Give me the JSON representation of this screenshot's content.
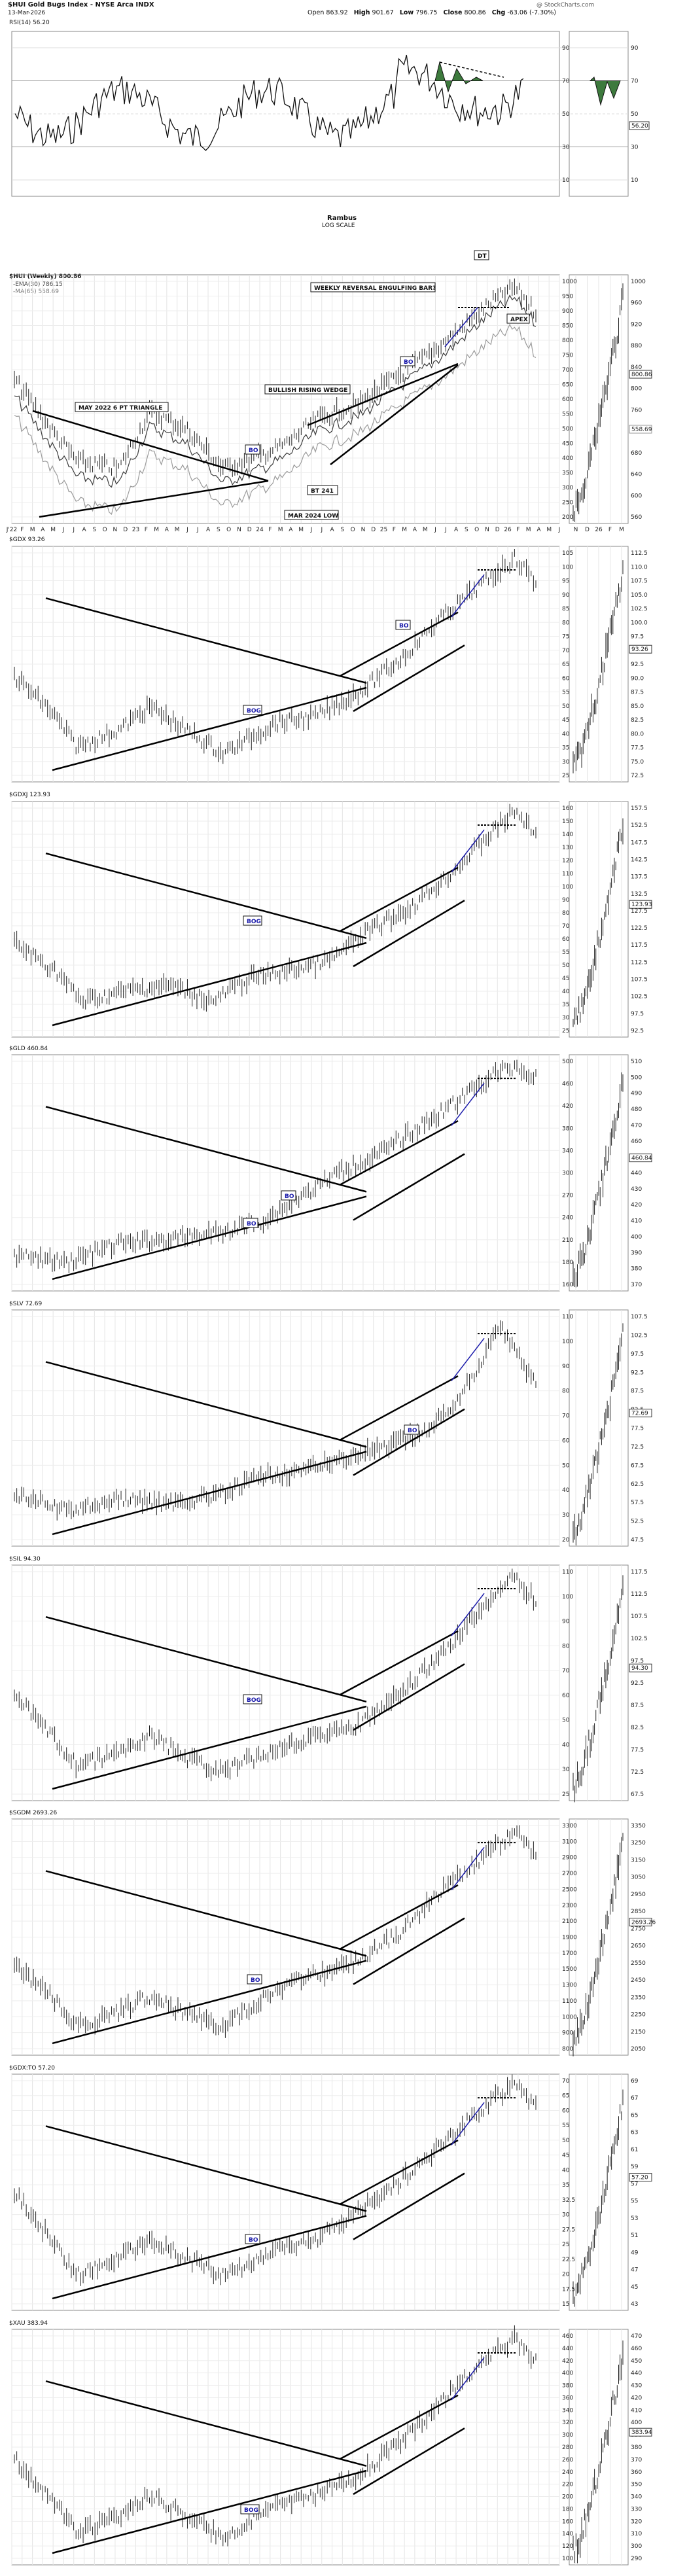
{
  "header": {
    "symbol_line": "$HUI Gold Bugs Index - NYSE Arca INDX",
    "date": "13-Mar-2026",
    "watermark": "@ StockCharts.com",
    "open_label": "Open",
    "open_value": "863.92",
    "high_label": "High",
    "high_value": "901.67",
    "low_label": "Low",
    "low_value": "796.75",
    "close_label": "Close",
    "close_value": "800.86",
    "chg_label": "Chg",
    "chg_value": "-63.06 (-7.30%)"
  },
  "rsi": {
    "label": "RSI(14) 56.20",
    "levels": [
      "90",
      "70",
      "50",
      "30",
      "10"
    ],
    "current_value": "56.20",
    "note_line1": "Rambus",
    "note_line2": "LOG SCALE",
    "fill_color": "#3d7a3d"
  },
  "main": {
    "legend_symbol": "$HUI (Weekly) 800.86",
    "legend_ema": "-EMA(30) 786.15",
    "legend_ma": "-MA(65) 558.69",
    "ema_color": "#3b3b3b",
    "ma_color": "#9b9b9b",
    "right_label_current": "800.86",
    "right_label_ma": "558.69",
    "annotations": {
      "triangle": "MAY 2022 6 PT TRIANGLE",
      "bo1": "BO",
      "bt": "BT 241",
      "low": "MAR 2024 LOW",
      "wedge": "BULLISH RISING WEDGE",
      "bo2": "BO",
      "engulf": "WEEKLY REVERSAL ENGULFING BAR?",
      "dt": "DT",
      "apex": "APEX"
    },
    "month_axis": [
      "J'22",
      "F",
      "M",
      "A",
      "M",
      "J",
      "J",
      "A",
      "S",
      "O",
      "N",
      "D",
      "23",
      "F",
      "M",
      "A",
      "M",
      "J",
      "J",
      "A",
      "S",
      "O",
      "N",
      "D",
      "24",
      "F",
      "M",
      "A",
      "M",
      "J",
      "J",
      "A",
      "S",
      "O",
      "N",
      "D",
      "25",
      "F",
      "M",
      "A",
      "M",
      "J",
      "J",
      "A",
      "S",
      "O",
      "N",
      "D",
      "26",
      "F",
      "M",
      "A",
      "M",
      "J"
    ],
    "daily_axis": [
      "N",
      "D",
      "26",
      "F",
      "M"
    ]
  },
  "chart_data": [
    {
      "type": "line",
      "title": "$HUI Gold Bugs Index (Weekly), log scale",
      "series": [
        {
          "name": "$HUI",
          "x": [
            "2022-01",
            "2022-05",
            "2022-09",
            "2023-01",
            "2023-05",
            "2023-10",
            "2024-03",
            "2024-07",
            "2024-12",
            "2025-04",
            "2025-08",
            "2025-12",
            "2026-02",
            "2026-03"
          ],
          "values": [
            280,
            300,
            200,
            270,
            280,
            210,
            200,
            290,
            265,
            400,
            500,
            700,
            950,
            800
          ]
        }
      ],
      "yticks": [
        "1000",
        "950",
        "900",
        "850",
        "800",
        "750",
        "700",
        "650",
        "600",
        "550",
        "500",
        "450",
        "400",
        "350",
        "300",
        "250",
        "200"
      ],
      "daily_yticks": [
        "1000",
        "960",
        "920",
        "880",
        "840",
        "800",
        "760",
        "720",
        "680",
        "640",
        "600",
        "560"
      ],
      "annotations": [
        "MAY 2022 6 PT TRIANGLE",
        "BO",
        "BT 241",
        "MAR 2024 LOW",
        "BULLISH RISING WEDGE",
        "BO",
        "WEEKLY REVERSAL ENGULFING BAR?",
        "DT",
        "APEX"
      ]
    },
    {
      "type": "line",
      "title": "$GDX 93.26",
      "series": [
        {
          "name": "GDX",
          "x": [
            "2022-01",
            "2022-09",
            "2023-05",
            "2024-03",
            "2025-04",
            "2025-12",
            "2026-02",
            "2026-03"
          ],
          "values": [
            32,
            22,
            33,
            26,
            45,
            80,
            110,
            93
          ]
        }
      ],
      "yticks": [
        "105",
        "100",
        "95",
        "90",
        "85",
        "80",
        "75",
        "70",
        "65",
        "60",
        "55",
        "50",
        "45",
        "40",
        "35",
        "30",
        "25"
      ],
      "daily_yticks": [
        "112.5",
        "110.0",
        "107.5",
        "105.0",
        "102.5",
        "100.0",
        "97.5",
        "95.0",
        "92.5",
        "90.0",
        "87.5",
        "85.0",
        "82.5",
        "80.0",
        "77.5",
        "75.0",
        "72.5"
      ],
      "annotations": [
        "BOG",
        "BO"
      ],
      "current_value": "93.26"
    },
    {
      "type": "line",
      "title": "$GDXJ 123.93",
      "series": [
        {
          "name": "GDXJ",
          "x": [
            "2022-01",
            "2022-09",
            "2023-05",
            "2024-03",
            "2025-04",
            "2025-12",
            "2026-02",
            "2026-03"
          ],
          "values": [
            42,
            28,
            42,
            32,
            60,
            100,
            150,
            124
          ]
        }
      ],
      "yticks": [
        "160",
        "150",
        "140",
        "130",
        "120",
        "110",
        "100",
        "90",
        "80",
        "70",
        "60",
        "55",
        "50",
        "45",
        "40",
        "35",
        "30",
        "25"
      ],
      "daily_yticks": [
        "157.5",
        "152.5",
        "147.5",
        "142.5",
        "137.5",
        "132.5",
        "127.5",
        "122.5",
        "117.5",
        "112.5",
        "107.5",
        "102.5",
        "97.5",
        "92.5"
      ],
      "annotations": [
        "BOG"
      ],
      "current_value": "123.93"
    },
    {
      "type": "line",
      "title": "$GLD 460.84",
      "series": [
        {
          "name": "GLD",
          "x": [
            "2022-01",
            "2022-09",
            "2023-05",
            "2024-03",
            "2024-10",
            "2025-04",
            "2025-10",
            "2026-01",
            "2026-03"
          ],
          "values": [
            170,
            155,
            185,
            200,
            250,
            300,
            370,
            480,
            461
          ]
        }
      ],
      "yticks": [
        "500",
        "460",
        "420",
        "380",
        "340",
        "300",
        "270",
        "240",
        "210",
        "180",
        "160"
      ],
      "daily_yticks": [
        "510",
        "500",
        "490",
        "480",
        "470",
        "460",
        "450",
        "440",
        "430",
        "420",
        "410",
        "400",
        "390",
        "380",
        "370"
      ],
      "annotations": [
        "BO",
        "BO"
      ],
      "current_value": "460.84"
    },
    {
      "type": "line",
      "title": "$SLV 72.69",
      "series": [
        {
          "name": "SLV",
          "x": [
            "2022-01",
            "2022-09",
            "2023-05",
            "2024-03",
            "2024-10",
            "2025-04",
            "2025-10",
            "2026-01",
            "2026-03"
          ],
          "values": [
            21,
            17,
            22,
            21,
            30,
            29,
            45,
            100,
            73
          ]
        }
      ],
      "yticks": [
        "110",
        "100",
        "90",
        "80",
        "70",
        "60",
        "50",
        "40",
        "30",
        "20"
      ],
      "daily_yticks": [
        "107.5",
        "102.5",
        "97.5",
        "92.5",
        "87.5",
        "82.5",
        "77.5",
        "72.5",
        "67.5",
        "62.5",
        "57.5",
        "52.5",
        "47.5"
      ],
      "annotations": [
        "BO"
      ],
      "current_value": "72.69"
    },
    {
      "type": "line",
      "title": "$SIL 94.30",
      "series": [
        {
          "name": "SIL",
          "x": [
            "2022-01",
            "2022-09",
            "2023-05",
            "2024-03",
            "2025-04",
            "2025-12",
            "2026-02",
            "2026-03"
          ],
          "values": [
            35,
            22,
            32,
            24,
            42,
            70,
            115,
            94
          ]
        }
      ],
      "yticks": [
        "110",
        "100",
        "90",
        "80",
        "70",
        "60",
        "50",
        "40",
        "30",
        "25"
      ],
      "daily_yticks": [
        "117.5",
        "112.5",
        "107.5",
        "102.5",
        "97.5",
        "92.5",
        "87.5",
        "82.5",
        "77.5",
        "72.5",
        "67.5"
      ],
      "annotations": [
        "BOG"
      ],
      "current_value": "94.30"
    },
    {
      "type": "line",
      "title": "$SGDM 2693.26",
      "series": [
        {
          "name": "SGDM",
          "x": [
            "2022-01",
            "2022-09",
            "2023-05",
            "2024-03",
            "2025-04",
            "2025-12",
            "2026-02",
            "2026-03"
          ],
          "values": [
            1100,
            750,
            1000,
            900,
            1500,
            2400,
            3300,
            2693
          ]
        }
      ],
      "yticks": [
        "3300",
        "3100",
        "2900",
        "2700",
        "2500",
        "2300",
        "2100",
        "1900",
        "1700",
        "1500",
        "1300",
        "1100",
        "1000",
        "900",
        "800"
      ],
      "daily_yticks": [
        "3350",
        "3250",
        "3150",
        "3050",
        "2950",
        "2850",
        "2750",
        "2650",
        "2550",
        "2450",
        "2350",
        "2250",
        "2150",
        "2050"
      ],
      "annotations": [
        "BO"
      ],
      "current_value": "2693.26"
    },
    {
      "type": "line",
      "title": "$GDX:TO 57.20",
      "series": [
        {
          "name": "GDX:TO",
          "x": [
            "2022-01",
            "2022-09",
            "2023-05",
            "2024-03",
            "2025-04",
            "2025-12",
            "2026-02",
            "2026-03"
          ],
          "values": [
            22,
            14,
            20,
            16,
            30,
            50,
            70,
            57
          ]
        }
      ],
      "yticks": [
        "70",
        "65",
        "60",
        "55",
        "50",
        "45",
        "40",
        "35",
        "32.5",
        "30",
        "27.5",
        "25",
        "22.5",
        "20",
        "17.5",
        "15"
      ],
      "daily_yticks": [
        "69",
        "67",
        "65",
        "63",
        "61",
        "59",
        "57",
        "55",
        "53",
        "51",
        "49",
        "47",
        "45",
        "43"
      ],
      "annotations": [
        "BO"
      ],
      "current_value": "57.20"
    },
    {
      "type": "line",
      "title": "$XAU 383.94",
      "series": [
        {
          "name": "XAU",
          "x": [
            "2022-01",
            "2022-09",
            "2023-05",
            "2024-03",
            "2025-04",
            "2025-12",
            "2026-02",
            "2026-03"
          ],
          "values": [
            150,
            100,
            140,
            110,
            220,
            340,
            460,
            384
          ]
        }
      ],
      "yticks": [
        "460",
        "440",
        "420",
        "400",
        "380",
        "360",
        "340",
        "320",
        "300",
        "280",
        "260",
        "240",
        "220",
        "200",
        "180",
        "160",
        "140",
        "120",
        "100"
      ],
      "daily_yticks": [
        "470",
        "460",
        "450",
        "440",
        "430",
        "420",
        "410",
        "400",
        "390",
        "380",
        "370",
        "360",
        "350",
        "340",
        "330",
        "320",
        "310",
        "300",
        "290"
      ],
      "annotations": [
        "BOG"
      ],
      "current_value": "383.94"
    }
  ]
}
